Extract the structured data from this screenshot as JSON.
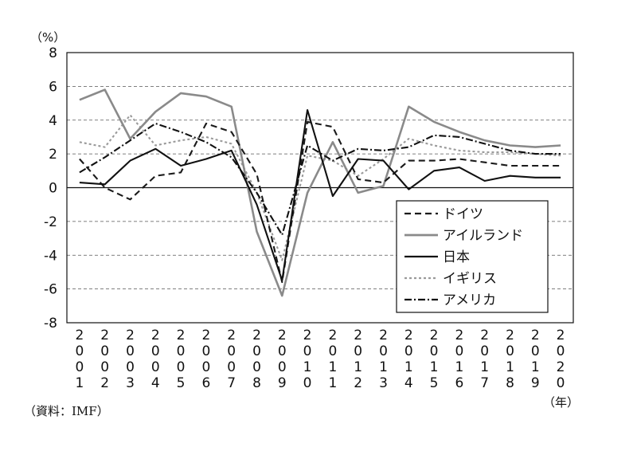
{
  "chart_data": {
    "type": "line",
    "ylabel": "（%）",
    "xlabel": "（年）",
    "source": "（資料：IMF）",
    "ylim": [
      -8,
      8
    ],
    "yticks": [
      -8,
      -6,
      -4,
      -2,
      0,
      2,
      4,
      6,
      8
    ],
    "grid": "horizontal-dashed",
    "legend_position": "bottom-right",
    "x": [
      "2001",
      "2002",
      "2003",
      "2004",
      "2005",
      "2006",
      "2007",
      "2008",
      "2009",
      "2010",
      "2011",
      "2012",
      "2013",
      "2014",
      "2015",
      "2016",
      "2017",
      "2018",
      "2019",
      "2020"
    ],
    "series": [
      {
        "name": "ドイツ",
        "style": "dashed",
        "color": "#1a1a1a",
        "values": [
          1.7,
          0.0,
          -0.7,
          0.7,
          0.9,
          3.8,
          3.3,
          0.8,
          -5.6,
          3.9,
          3.6,
          0.5,
          0.3,
          1.6,
          1.6,
          1.7,
          1.5,
          1.3,
          1.3,
          1.3
        ]
      },
      {
        "name": "アイルランド",
        "style": "solid",
        "color": "#8a8a8a",
        "values": [
          5.2,
          5.8,
          2.9,
          4.5,
          5.6,
          5.4,
          4.8,
          -2.6,
          -6.4,
          -0.3,
          2.7,
          -0.3,
          0.1,
          4.8,
          3.9,
          3.3,
          2.8,
          2.5,
          2.4,
          2.5
        ]
      },
      {
        "name": "日本",
        "style": "solid",
        "color": "#111111",
        "values": [
          0.3,
          0.2,
          1.6,
          2.3,
          1.3,
          1.7,
          2.2,
          -1.0,
          -5.5,
          4.6,
          -0.5,
          1.7,
          1.6,
          -0.1,
          1.0,
          1.2,
          0.4,
          0.7,
          0.6,
          0.6
        ]
      },
      {
        "name": "イギリス",
        "style": "dotted",
        "color": "#9a9a9a",
        "values": [
          2.7,
          2.4,
          4.3,
          2.5,
          2.8,
          3.0,
          2.6,
          -0.3,
          -4.3,
          1.9,
          1.6,
          0.7,
          1.7,
          2.9,
          2.5,
          2.2,
          2.1,
          2.1,
          2.0,
          1.9
        ]
      },
      {
        "name": "アメリカ",
        "style": "dashdot",
        "color": "#111111",
        "values": [
          0.9,
          1.8,
          2.8,
          3.8,
          3.3,
          2.7,
          1.8,
          -0.3,
          -2.8,
          2.5,
          1.6,
          2.3,
          2.2,
          2.4,
          3.1,
          3.0,
          2.6,
          2.2,
          2.0,
          2.0
        ]
      }
    ]
  }
}
